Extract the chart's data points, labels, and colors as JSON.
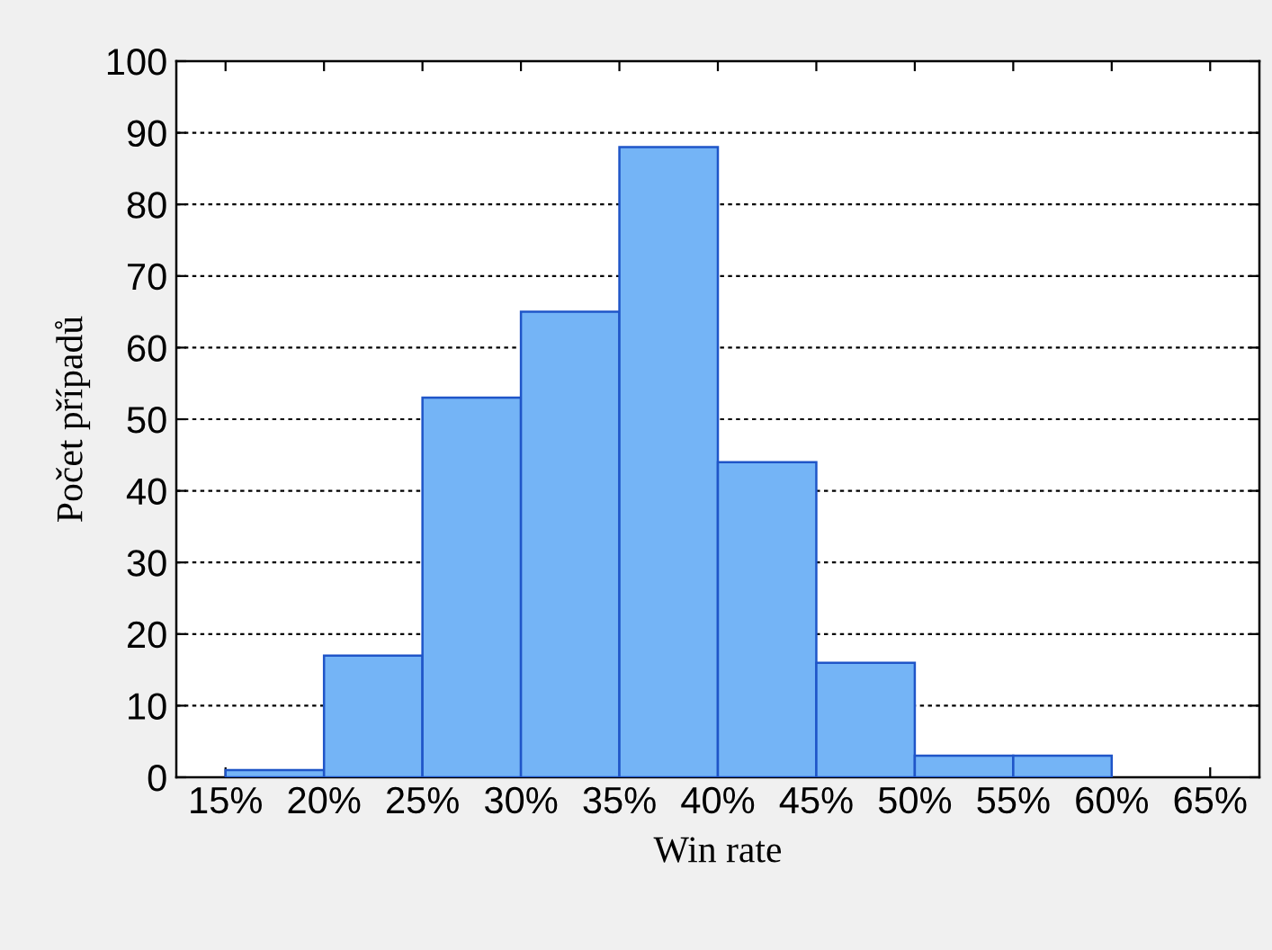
{
  "chart_data": {
    "type": "histogram",
    "xlabel": "Win rate",
    "ylabel": "Počet případů",
    "bins": [
      15,
      20,
      25,
      30,
      35,
      40,
      45,
      50,
      55,
      60,
      65
    ],
    "values": [
      1,
      17,
      53,
      65,
      88,
      44,
      16,
      3,
      3,
      0
    ],
    "color": "#74b4f6",
    "xlim": [
      12.5,
      67.5
    ],
    "xticks": [
      {
        "value": 15,
        "label": "15%"
      },
      {
        "value": 20,
        "label": "20%"
      },
      {
        "value": 25,
        "label": "25%"
      },
      {
        "value": 30,
        "label": "30%"
      },
      {
        "value": 35,
        "label": "35%"
      },
      {
        "value": 40,
        "label": "40%"
      },
      {
        "value": 45,
        "label": "45%"
      },
      {
        "value": 50,
        "label": "50%"
      },
      {
        "value": 55,
        "label": "55%"
      },
      {
        "value": 60,
        "label": "60%"
      },
      {
        "value": 65,
        "label": "65%"
      }
    ],
    "ylim": [
      0,
      100
    ],
    "yticks": [
      0,
      10,
      20,
      30,
      40,
      50,
      60,
      70,
      80,
      90,
      100
    ],
    "grid": "y",
    "legend": false
  }
}
